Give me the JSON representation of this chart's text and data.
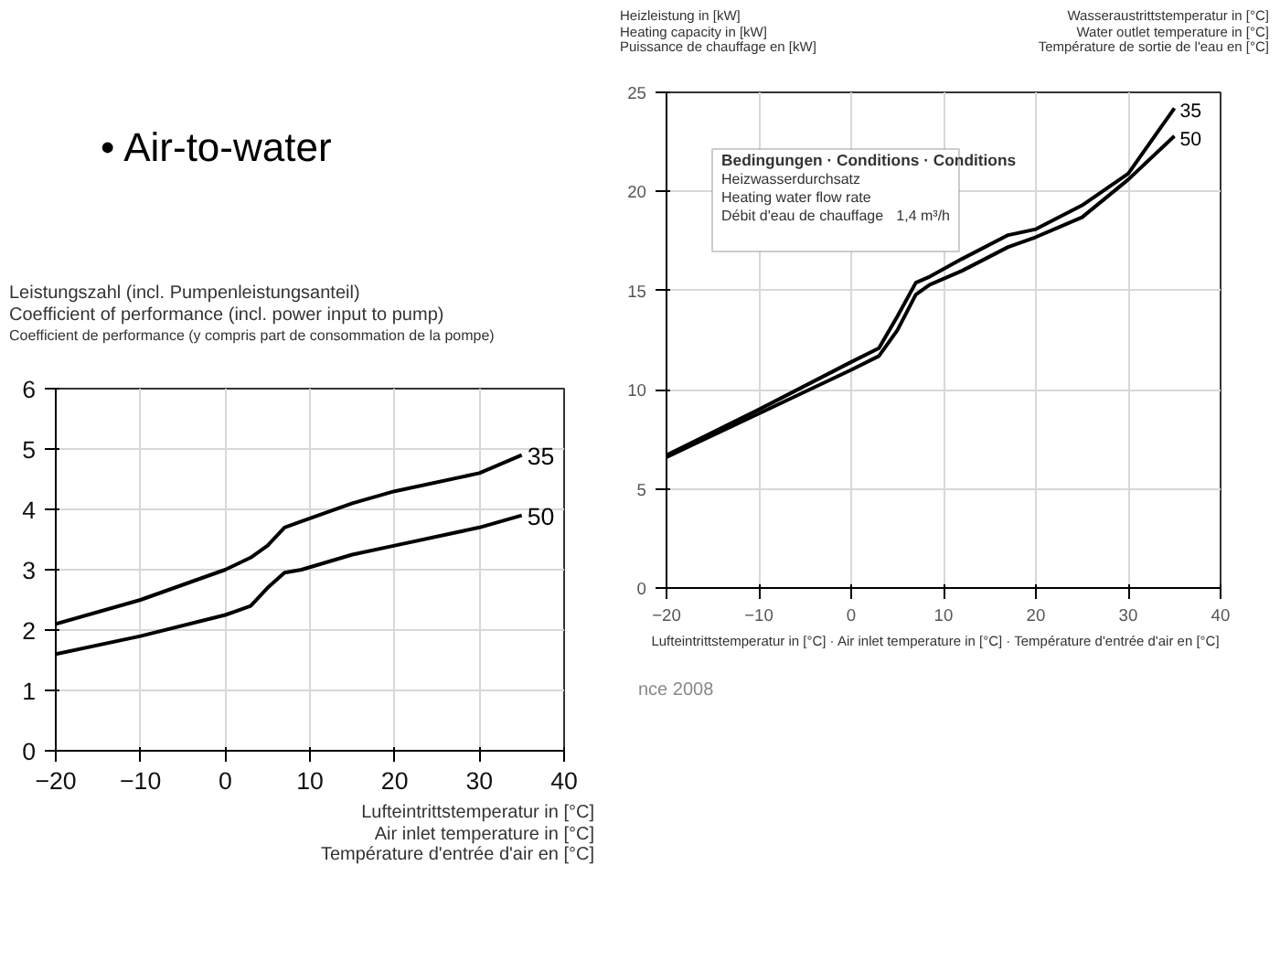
{
  "chart_data": [
    {
      "type": "line",
      "ylabel": "Heizleistung in [kW]\nHeating capacity in [kW]\nPuissance de chauffage en [kW]",
      "legend_title": "Wasseraustrittstemperatur in [°C]\nWater outlet temperature in [°C]\nTempérature de sortie de l'eau en [°C]",
      "xlabel": "Lufteintrittstemperatur in [°C] · Air inlet temperature in [°C] · Température d'entrée d'air en [°C]",
      "x": [
        -20,
        -10,
        0,
        3,
        5,
        7,
        8.5,
        12,
        17,
        20,
        25,
        30,
        35
      ],
      "series": [
        {
          "name": "35",
          "color": "#000000",
          "values": [
            6.7,
            9.0,
            11.4,
            12.1,
            13.7,
            15.4,
            15.7,
            16.6,
            17.8,
            18.1,
            19.3,
            20.9,
            24.2
          ]
        },
        {
          "name": "50",
          "color": "#000000",
          "values": [
            6.6,
            8.8,
            11.0,
            11.7,
            13.0,
            14.8,
            15.3,
            16.0,
            17.2,
            17.7,
            18.7,
            20.6,
            22.8
          ]
        }
      ],
      "xlim": [
        -20,
        40
      ],
      "ylim": [
        0,
        25
      ],
      "xticks": [
        -20,
        -10,
        0,
        10,
        20,
        30,
        40
      ],
      "yticks": [
        0,
        5,
        10,
        15,
        20,
        25
      ],
      "grid": true,
      "annotations": [
        "Bedingungen · Conditions · Conditions",
        "Heizwasserdurchsatz",
        "Heating water flow rate",
        "Débit d'eau de chauffage",
        "1,4 m³/h"
      ]
    },
    {
      "type": "other",
      "annotations": [
        "• Air-to-water",
        "nce 2008"
      ]
    },
    {
      "type": "line",
      "ylabel": "Leistungszahl (incl. Pumpenleistungsanteil)\nCoefficient of performance (incl. power input to pump)\nCoefficient de performance (y compris part de consommation de la pompe)",
      "xlabel": "Lufteintrittstemperatur in [°C]\nAir inlet temperature in [°C]\nTempérature d'entrée d'air en [°C]",
      "x": [
        -20,
        -10,
        0,
        3,
        5,
        7,
        9,
        15,
        20,
        30,
        35
      ],
      "series": [
        {
          "name": "35",
          "color": "#000000",
          "values": [
            2.1,
            2.5,
            3.0,
            3.2,
            3.4,
            3.7,
            3.8,
            4.1,
            4.3,
            4.6,
            4.9
          ]
        },
        {
          "name": "50",
          "color": "#000000",
          "values": [
            1.6,
            1.9,
            2.25,
            2.4,
            2.7,
            2.95,
            3.0,
            3.25,
            3.4,
            3.7,
            3.9
          ]
        }
      ],
      "xlim": [
        -20,
        40
      ],
      "ylim": [
        0,
        6
      ],
      "xticks": [
        -20,
        -10,
        0,
        10,
        20,
        30,
        40
      ],
      "yticks": [
        0,
        1,
        2,
        3,
        4,
        5,
        6
      ],
      "grid": true
    }
  ]
}
